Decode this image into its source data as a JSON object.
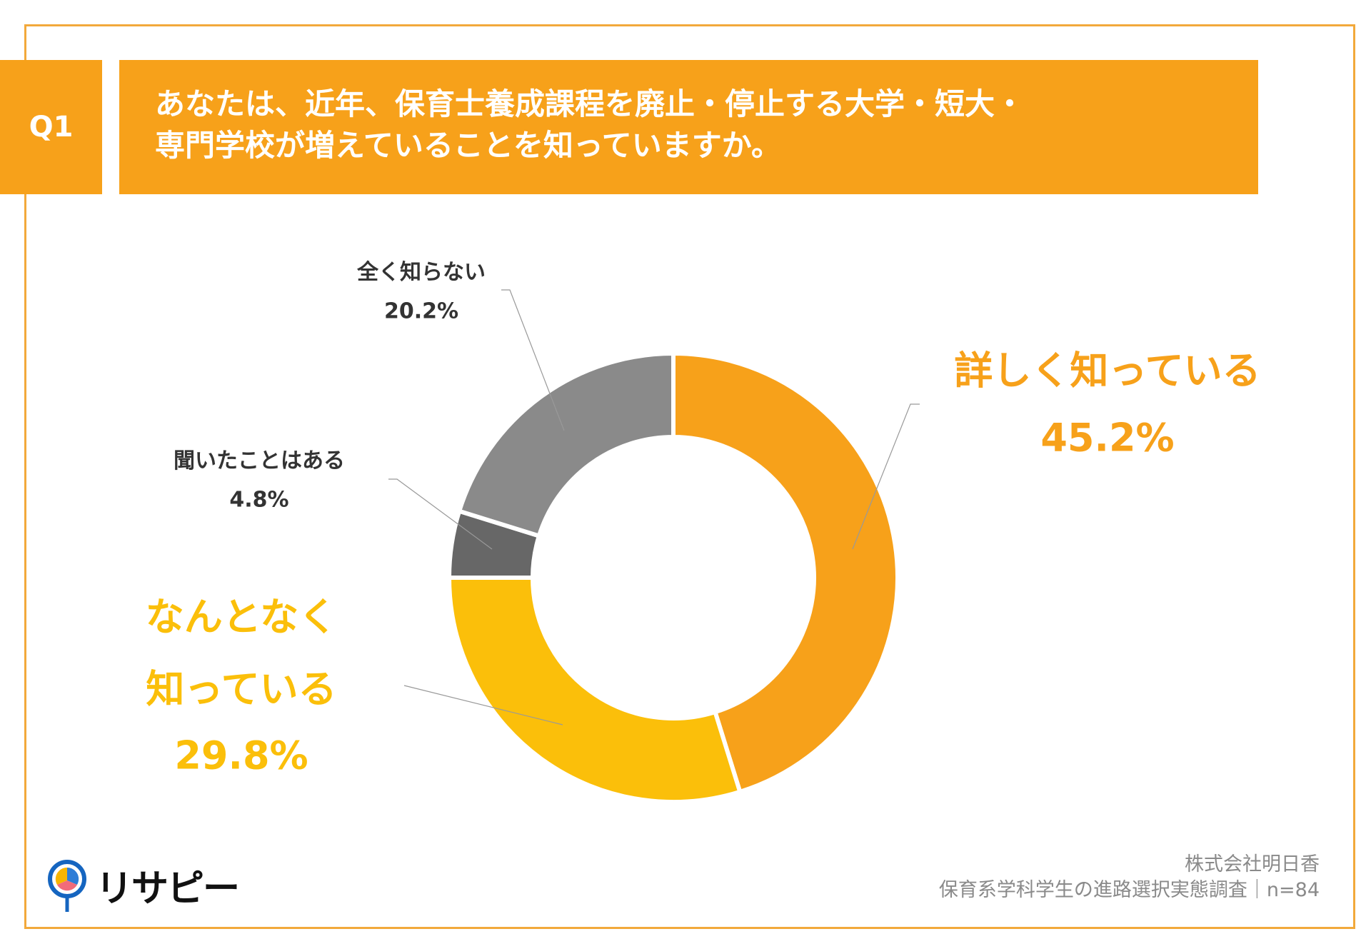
{
  "header": {
    "question_no": "Q1",
    "title_lines": [
      "あなたは、近年、保育士養成課程を廃止・停止する大学・短大・",
      "専門学校が増えていることを知っていますか。"
    ]
  },
  "chart_data": {
    "type": "pie",
    "variant": "donut",
    "title": "あなたは、近年、保育士養成課程を廃止・停止する大学・短大・専門学校が増えていることを知っていますか。",
    "categories": [
      "詳しく知っている",
      "なんとなく知っている",
      "聞いたことはある",
      "全く知らない"
    ],
    "values": [
      45.2,
      29.8,
      4.8,
      20.2
    ],
    "value_labels": [
      "45.2%",
      "29.8%",
      "4.8%",
      "20.2%"
    ],
    "label_lines": {
      "detailed": [
        "詳しく知っている"
      ],
      "vaguely": [
        "なんとなく",
        "知っている"
      ],
      "heard": [
        "聞いたことはある"
      ],
      "none": [
        "全く知らない"
      ]
    },
    "colors": [
      "#F7A11A",
      "#FBBF0A",
      "#676767",
      "#8A8A8A"
    ],
    "start": "top",
    "direction": "clockwise",
    "legend": "none"
  },
  "footer": {
    "company": "株式会社明日香",
    "survey": "保育系学科学生の進路選択実態調査｜n=84"
  },
  "logo": {
    "text": "リサピー"
  },
  "colors": {
    "accent": "#F7A11A",
    "frame": "#F2A93B"
  }
}
